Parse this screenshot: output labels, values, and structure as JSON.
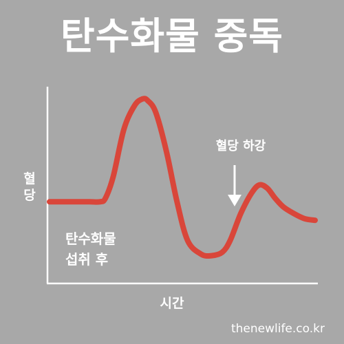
{
  "title": "탄수화물 중독",
  "footer": "thenewlife.co.kr",
  "colors": {
    "background": "#a8a8a8",
    "line": "#d9463a",
    "text": "#ffffff",
    "axis": "#ffffff"
  },
  "chart_data": {
    "type": "line",
    "title": "탄수화물 중독",
    "xlabel": "시간",
    "ylabel_chars": [
      "혈",
      "당"
    ],
    "grid": false,
    "legend": "none",
    "xlim": [
      0,
      100
    ],
    "ylim": [
      0,
      100
    ],
    "series": [
      {
        "x": [
          0,
          8,
          15,
          19,
          21,
          24,
          28,
          32,
          35,
          37,
          40,
          44,
          48,
          52,
          57,
          61,
          65,
          68,
          72,
          76,
          79,
          82,
          85,
          88,
          92,
          96,
          100
        ],
        "values": [
          35,
          35,
          35,
          35,
          37,
          50,
          78,
          92,
          96,
          95,
          88,
          65,
          35,
          12,
          4,
          3,
          5,
          12,
          28,
          40,
          45,
          43,
          37,
          32,
          28,
          25,
          24
        ]
      }
    ],
    "annotations": [
      {
        "text_lines": [
          "탄수화물",
          "섭취 후"
        ]
      },
      {
        "text": "혈당 하강",
        "arrow": "down"
      }
    ]
  }
}
